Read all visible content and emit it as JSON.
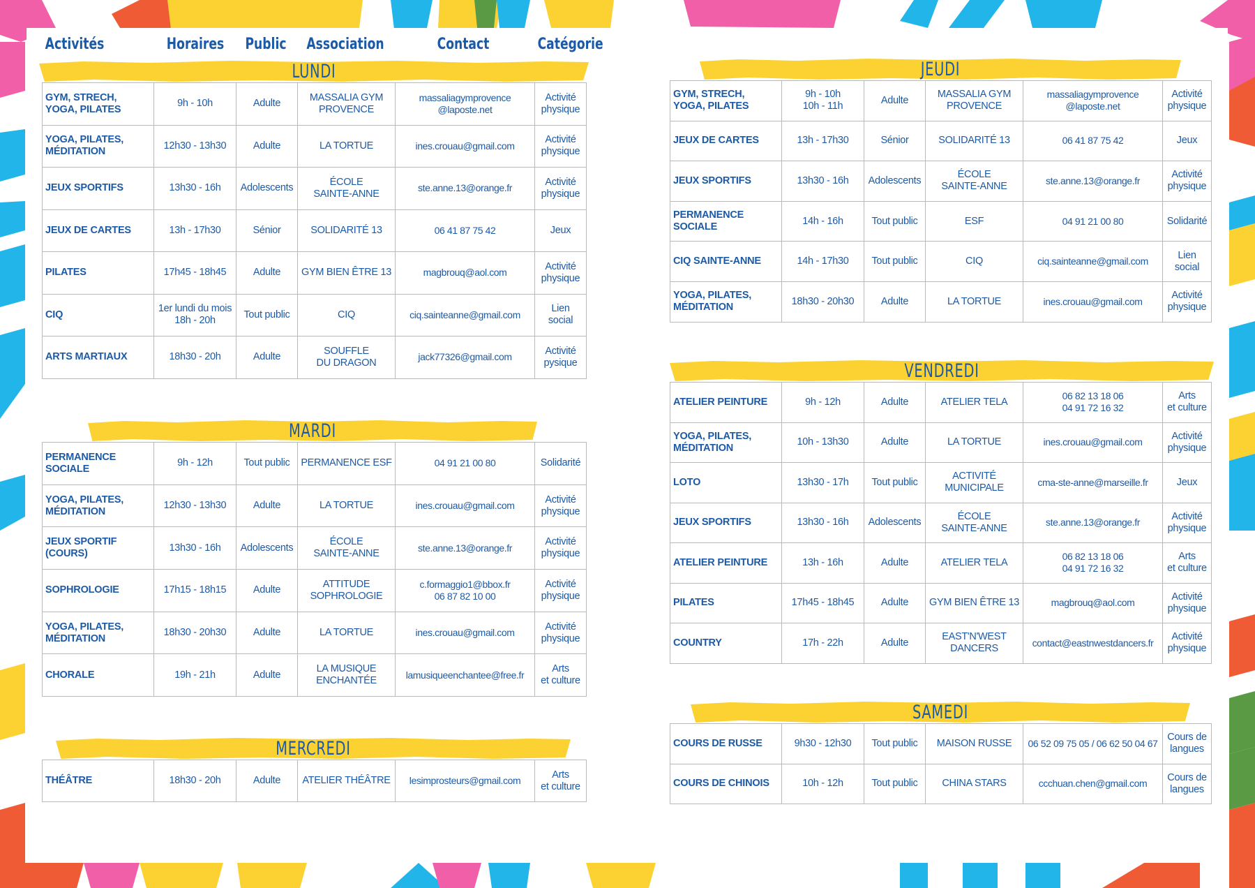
{
  "headers": {
    "activites": "Activités",
    "horaires": "Horaires",
    "public": "Public",
    "association": "Association",
    "contact": "Contact",
    "categorie": "Catégorie"
  },
  "days": {
    "lundi": {
      "label": "LUNDI",
      "rows": [
        {
          "activite": "GYM, STRECH,\nYOGA, PILATES",
          "horaire": "9h - 10h",
          "public": "Adulte",
          "association": "MASSALIA GYM\nPROVENCE",
          "contact": "massaliagymprovence\n@laposte.net",
          "categorie": "Activité\nphysique"
        },
        {
          "activite": "YOGA, PILATES,\nMÉDITATION",
          "horaire": "12h30 - 13h30",
          "public": "Adulte",
          "association": "LA TORTUE",
          "contact": "ines.crouau@gmail.com",
          "categorie": "Activité\nphysique"
        },
        {
          "activite": "JEUX SPORTIFS",
          "horaire": "13h30 - 16h",
          "public": "Adolescents",
          "association": "ÉCOLE\nSAINTE-ANNE",
          "contact": "ste.anne.13@orange.fr",
          "categorie": "Activité\nphysique"
        },
        {
          "activite": "JEUX DE CARTES",
          "horaire": "13h - 17h30",
          "public": "Sénior",
          "association": "SOLIDARITÉ 13",
          "contact": "06 41 87 75 42",
          "categorie": "Jeux"
        },
        {
          "activite": "PILATES",
          "horaire": "17h45 - 18h45",
          "public": "Adulte",
          "association": "GYM BIEN ÊTRE 13",
          "contact": "magbrouq@aol.com",
          "categorie": "Activité\nphysique"
        },
        {
          "activite": "CIQ",
          "horaire": "1er lundi du mois\n18h - 20h",
          "public": "Tout public",
          "association": "CIQ",
          "contact": "ciq.sainteanne@gmail.com",
          "categorie": "Lien\nsocial"
        },
        {
          "activite": "ARTS MARTIAUX",
          "horaire": "18h30 - 20h",
          "public": "Adulte",
          "association": "SOUFFLE\nDU DRAGON",
          "contact": "jack77326@gmail.com",
          "categorie": "Activité\npysique"
        }
      ]
    },
    "mardi": {
      "label": "MARDI",
      "rows": [
        {
          "activite": "PERMANENCE\nSOCIALE",
          "horaire": "9h - 12h",
          "public": "Tout public",
          "association": "PERMANENCE ESF",
          "contact": "04 91 21 00 80",
          "categorie": "Solidarité"
        },
        {
          "activite": "YOGA, PILATES,\nMÉDITATION",
          "horaire": "12h30 - 13h30",
          "public": "Adulte",
          "association": "LA TORTUE",
          "contact": "ines.crouau@gmail.com",
          "categorie": "Activité\nphysique"
        },
        {
          "activite": "JEUX SPORTIF\n(COURS)",
          "horaire": "13h30 - 16h",
          "public": "Adolescents",
          "association": "ÉCOLE\nSAINTE-ANNE",
          "contact": "ste.anne.13@orange.fr",
          "categorie": "Activité\nphysique"
        },
        {
          "activite": "SOPHROLOGIE",
          "horaire": "17h15 - 18h15",
          "public": "Adulte",
          "association": "ATTITUDE\nSOPHROLOGIE",
          "contact": "c.formaggio1@bbox.fr\n06 87 82 10 00",
          "categorie": "Activité\nphysique"
        },
        {
          "activite": "YOGA, PILATES,\nMÉDITATION",
          "horaire": "18h30 - 20h30",
          "public": "Adulte",
          "association": "LA TORTUE",
          "contact": "ines.crouau@gmail.com",
          "categorie": "Activité\nphysique"
        },
        {
          "activite": "CHORALE",
          "horaire": "19h - 21h",
          "public": "Adulte",
          "association": "LA MUSIQUE\nENCHANTÉE",
          "contact": "lamusiqueenchantee@free.fr",
          "categorie": "Arts\net culture"
        }
      ]
    },
    "mercredi": {
      "label": "MERCREDI",
      "rows": [
        {
          "activite": "THÉÂTRE",
          "horaire": "18h30 - 20h",
          "public": "Adulte",
          "association": "ATELIER THÉÂTRE",
          "contact": "lesimprosteurs@gmail.com",
          "categorie": "Arts\net culture"
        }
      ]
    },
    "jeudi": {
      "label": "JEUDI",
      "rows": [
        {
          "activite": "GYM, STRECH,\nYOGA, PILATES",
          "horaire": "9h - 10h\n10h - 11h",
          "public": "Adulte",
          "association": "MASSALIA GYM\nPROVENCE",
          "contact": "massaliagymprovence\n@laposte.net",
          "categorie": "Activité\nphysique"
        },
        {
          "activite": "JEUX DE CARTES",
          "horaire": "13h - 17h30",
          "public": "Sénior",
          "association": "SOLIDARITÉ 13",
          "contact": "06 41 87 75 42",
          "categorie": "Jeux"
        },
        {
          "activite": "JEUX SPORTIFS",
          "horaire": "13h30 - 16h",
          "public": "Adolescents",
          "association": "ÉCOLE\nSAINTE-ANNE",
          "contact": "ste.anne.13@orange.fr",
          "categorie": "Activité\nphysique"
        },
        {
          "activite": "PERMANENCE\nSOCIALE",
          "horaire": "14h - 16h",
          "public": "Tout public",
          "association": "ESF",
          "contact": "04 91 21 00 80",
          "categorie": "Solidarité"
        },
        {
          "activite": "CIQ SAINTE-ANNE",
          "horaire": "14h - 17h30",
          "public": "Tout public",
          "association": "CIQ",
          "contact": "ciq.sainteanne@gmail.com",
          "categorie": "Lien\nsocial"
        },
        {
          "activite": "YOGA, PILATES,\nMÉDITATION",
          "horaire": "18h30 - 20h30",
          "public": "Adulte",
          "association": "LA TORTUE",
          "contact": "ines.crouau@gmail.com",
          "categorie": "Activité\nphysique"
        }
      ]
    },
    "vendredi": {
      "label": "VENDREDI",
      "rows": [
        {
          "activite": "ATELIER PEINTURE",
          "horaire": "9h - 12h",
          "public": "Adulte",
          "association": "ATELIER TELA",
          "contact": "06 82 13 18 06\n04 91 72 16 32",
          "categorie": "Arts\net culture"
        },
        {
          "activite": "YOGA, PILATES,\nMÉDITATION",
          "horaire": "10h - 13h30",
          "public": "Adulte",
          "association": "LA TORTUE",
          "contact": "ines.crouau@gmail.com",
          "categorie": "Activité\nphysique"
        },
        {
          "activite": "LOTO",
          "horaire": "13h30 - 17h",
          "public": "Tout public",
          "association": "ACTIVITÉ\nMUNICIPALE",
          "contact": "cma-ste-anne@marseille.fr",
          "categorie": "Jeux"
        },
        {
          "activite": "JEUX SPORTIFS",
          "horaire": "13h30 - 16h",
          "public": "Adolescents",
          "association": "ÉCOLE\nSAINTE-ANNE",
          "contact": "ste.anne.13@orange.fr",
          "categorie": "Activité\nphysique"
        },
        {
          "activite": "ATELIER PEINTURE",
          "horaire": "13h - 16h",
          "public": "Adulte",
          "association": "ATELIER TELA",
          "contact": "06 82 13 18 06\n04 91 72 16 32",
          "categorie": "Arts\net culture"
        },
        {
          "activite": "PILATES",
          "horaire": "17h45 - 18h45",
          "public": "Adulte",
          "association": "GYM BIEN ÊTRE 13",
          "contact": "magbrouq@aol.com",
          "categorie": "Activité\nphysique"
        },
        {
          "activite": "COUNTRY",
          "horaire": "17h - 22h",
          "public": "Adulte",
          "association": "EAST'N'WEST\nDANCERS",
          "contact": "contact@eastnwestdancers.fr",
          "categorie": "Activité\nphysique"
        }
      ]
    },
    "samedi": {
      "label": "SAMEDI",
      "rows": [
        {
          "activite": "COURS DE RUSSE",
          "horaire": "9h30 - 12h30",
          "public": "Tout public",
          "association": "MAISON RUSSE",
          "contact": "06 52 09 75 05 / 06 62 50 04 67",
          "categorie": "Cours de\nlangues"
        },
        {
          "activite": "COURS DE CHINOIS",
          "horaire": "10h - 12h",
          "public": "Tout public",
          "association": "CHINA STARS",
          "contact": "ccchuan.chen@gmail.com",
          "categorie": "Cours de\nlangues"
        }
      ]
    }
  }
}
